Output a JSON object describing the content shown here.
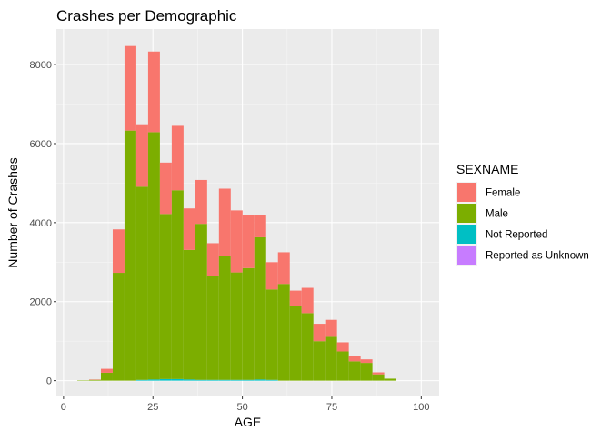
{
  "chart_data": {
    "type": "bar",
    "subtype": "stacked-histogram",
    "title": "Crashes per Demographic",
    "xlabel": "AGE",
    "ylabel": "Number of Crashes",
    "xlim": [
      -2,
      105
    ],
    "ylim": [
      -400,
      8900
    ],
    "x_ticks": [
      0,
      25,
      50,
      75,
      100
    ],
    "y_ticks": [
      0,
      2000,
      4000,
      6000,
      8000
    ],
    "grid": true,
    "legend": {
      "title": "SEXNAME",
      "position": "right",
      "entries": [
        {
          "name": "Female",
          "color": "#F8766D"
        },
        {
          "name": "Male",
          "color": "#7CAE00"
        },
        {
          "name": "Not Reported",
          "color": "#00BFC4"
        },
        {
          "name": "Reported as Unknown",
          "color": "#C77CFF"
        }
      ]
    },
    "bin_width": 3.3,
    "bin_centers": [
      5.5,
      8.8,
      12.1,
      15.4,
      18.7,
      22.0,
      25.3,
      28.6,
      31.9,
      35.2,
      38.5,
      41.8,
      45.1,
      48.4,
      51.7,
      55.0,
      58.3,
      61.6,
      64.9,
      68.2,
      71.5,
      74.8,
      78.1,
      81.4,
      84.7,
      88.0,
      91.3,
      94.6,
      97.9
    ],
    "series": [
      {
        "name": "Reported as Unknown",
        "color": "#C77CFF",
        "values": [
          0,
          0,
          0,
          0,
          0,
          0,
          0,
          0,
          0,
          0,
          0,
          0,
          0,
          0,
          0,
          0,
          0,
          0,
          0,
          0,
          0,
          0,
          0,
          0,
          0,
          0,
          0,
          0,
          0
        ]
      },
      {
        "name": "Not Reported",
        "color": "#00BFC4",
        "values": [
          0,
          0,
          0,
          0,
          0,
          20,
          30,
          40,
          40,
          30,
          20,
          20,
          20,
          20,
          20,
          30,
          20,
          0,
          0,
          0,
          0,
          0,
          0,
          0,
          0,
          0,
          0,
          0,
          0
        ]
      },
      {
        "name": "Male",
        "color": "#7CAE00",
        "values": [
          10,
          20,
          200,
          2730,
          6330,
          4890,
          6260,
          4180,
          4780,
          3280,
          3950,
          2640,
          3140,
          2720,
          2830,
          3600,
          2290,
          2450,
          1880,
          1710,
          1000,
          1110,
          740,
          490,
          450,
          160,
          50,
          0,
          0
        ]
      },
      {
        "name": "Female",
        "color": "#F8766D",
        "values": [
          0,
          10,
          100,
          1100,
          2140,
          1580,
          2040,
          1300,
          1630,
          1050,
          1110,
          820,
          1700,
          1570,
          1340,
          570,
          690,
          800,
          400,
          640,
          440,
          430,
          230,
          130,
          90,
          50,
          0,
          0,
          0
        ]
      }
    ]
  }
}
